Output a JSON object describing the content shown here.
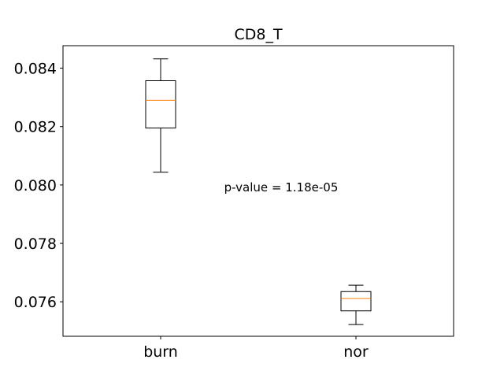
{
  "chart_data": {
    "type": "boxplot",
    "title": "CD8_T",
    "xlabel": "",
    "ylabel": "",
    "categories": [
      "burn",
      "nor"
    ],
    "boxes": [
      {
        "name": "burn",
        "whisker_low": 0.08044,
        "q1": 0.08195,
        "median": 0.0829,
        "q3": 0.08357,
        "whisker_high": 0.08432
      },
      {
        "name": "nor",
        "whisker_low": 0.07522,
        "q1": 0.07569,
        "median": 0.07611,
        "q3": 0.07635,
        "whisker_high": 0.07657
      }
    ],
    "ylim": [
      0.07482,
      0.08477
    ],
    "yticks": [
      0.076,
      0.078,
      0.08,
      0.082,
      0.084
    ],
    "ytick_labels": [
      "0.076",
      "0.078",
      "0.080",
      "0.082",
      "0.084"
    ],
    "annotation": "p-value = 1.18e-05",
    "grid": false,
    "colors": {
      "box": "#000000",
      "median": "#ff7f0e",
      "axes": "#000000"
    }
  }
}
